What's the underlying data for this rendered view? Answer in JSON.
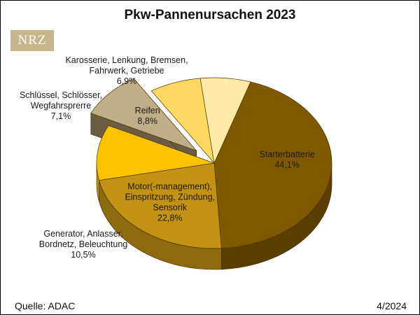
{
  "logo": "NRZ",
  "footer": {
    "source": "Quelle: ADAC",
    "date": "4/2024"
  },
  "chart_data": {
    "type": "pie",
    "title": "Pkw-Pannenursachen 2023",
    "value_suffix": "%",
    "slices": [
      {
        "name": "Starterbatterie",
        "value": 44.1,
        "label_lines": [
          "Starterbatterie"
        ],
        "value_label": "44,1%",
        "color": "#805800",
        "side_color": "#5a3e00"
      },
      {
        "name": "Motor(-management), Einspritzung, Zündung, Sensorik",
        "value": 22.8,
        "label_lines": [
          "Motor(-management),",
          "Einspritzung, Zündung,",
          "Sensorik"
        ],
        "value_label": "22,8%",
        "color": "#c39212",
        "side_color": "#8c6a0d"
      },
      {
        "name": "Generator, Anlasser, Bordnetz, Beleuchtung",
        "value": 10.5,
        "label_lines": [
          "Generator, Anlasser,",
          "Bordnetz, Beleuchtung"
        ],
        "value_label": "10,5%",
        "color": "#fcc300",
        "side_color": "#c19300"
      },
      {
        "name": "Reifen",
        "value": 8.8,
        "label_lines": [
          "Reifen"
        ],
        "value_label": "8,8%",
        "color": "#c0ae88",
        "side_color": "#6a5d44"
      },
      {
        "name": "Schlüssel, Schlösser, Wegfahrsprerre",
        "value": 7.1,
        "label_lines": [
          "Schlüssel, Schlösser,",
          "Wegfahrsprerre"
        ],
        "value_label": "7,1%",
        "color": "#ffd861",
        "side_color": "#c9a741"
      },
      {
        "name": "Karosserie, Lenkung, Bremsen, Fahrwerk, Getriebe",
        "value": 6.9,
        "label_lines": [
          "Karosserie, Lenkung, Bremsen,",
          "Fahrwerk, Getriebe"
        ],
        "value_label": "6,9%",
        "color": "#ffeaa8",
        "side_color": "#cdb873"
      }
    ],
    "exploded": [
      "Reifen"
    ],
    "legend": "none",
    "label_placement": "inside-outside"
  }
}
